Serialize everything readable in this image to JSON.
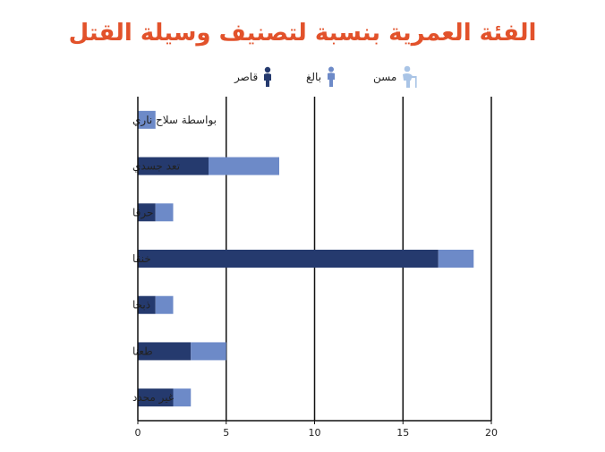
{
  "chart_data": {
    "type": "bar",
    "orientation": "horizontal",
    "stacked": true,
    "title": "الفئة العمرية بنسبة لتصنيف وسيلة القتل",
    "categories": [
      "بواسطة سلاح ناري",
      "تعد جسدي",
      "حرقا",
      "خنقا",
      "ذبحا",
      "طعنا",
      "غير محدد"
    ],
    "series": [
      {
        "name": "قاصر",
        "color": "#253a6e",
        "values": [
          0,
          4,
          1,
          17,
          1,
          3,
          2
        ]
      },
      {
        "name": "بالغ",
        "color": "#6d8ac8",
        "values": [
          1,
          4,
          1,
          2,
          1,
          2,
          1
        ]
      },
      {
        "name": "مسن",
        "color": "#a9c4e6",
        "values": [
          0,
          0,
          0,
          0,
          0,
          0,
          0
        ]
      }
    ],
    "xlim": [
      0,
      20
    ],
    "xticks": [
      0,
      5,
      10,
      15,
      20
    ],
    "grid": true,
    "legend_position": "top"
  },
  "legend_icons": {
    "قاصر": "child-person-icon",
    "بالغ": "adult-person-icon",
    "مسن": "elderly-person-icon"
  }
}
